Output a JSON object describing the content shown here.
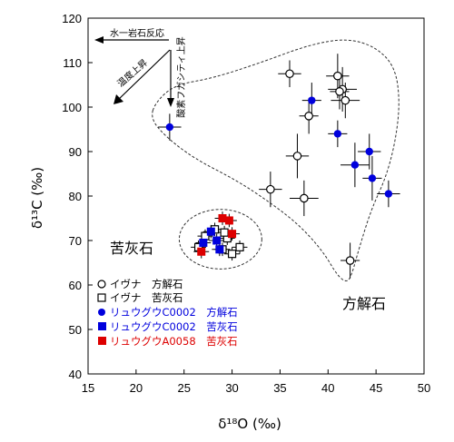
{
  "chart_data": {
    "type": "scatter",
    "xlabel": "δ¹⁸O (‰)",
    "ylabel": "δ¹³C (‰)",
    "xlim": [
      15,
      50
    ],
    "ylim": [
      40,
      120
    ],
    "xticks": [
      "15",
      "20",
      "25",
      "30",
      "35",
      "40",
      "45",
      "50"
    ],
    "yticks": [
      "40",
      "50",
      "60",
      "70",
      "80",
      "90",
      "100",
      "110",
      "120"
    ],
    "grid": false,
    "annotations": {
      "water_rock": "水一岩石反応",
      "temp_rise": "温度上昇",
      "oxygen_fugacity": "酸素フガシティ上昇",
      "dolomite": "苦灰石",
      "calcite": "方解石"
    },
    "legend": [
      {
        "marker": "○",
        "label": "イヴナ　方解石",
        "color": "#000000"
      },
      {
        "marker": "□",
        "label": "イヴナ　苦灰石",
        "color": "#000000"
      },
      {
        "marker": "●",
        "label": "リュウグウC0002　方解石",
        "color": "#0000dd"
      },
      {
        "marker": "■",
        "label": "リュウグウC0002　苦灰石",
        "color": "#0000dd"
      },
      {
        "marker": "■",
        "label": "リュウグウA0058　苦灰石",
        "color": "#dd0000"
      }
    ],
    "series": [
      {
        "name": "イヴナ　方解石",
        "marker": "open-circle",
        "color": "#000000",
        "points": [
          {
            "x": 36.0,
            "y": 107.5,
            "xerr": 1.2,
            "yerr": 3
          },
          {
            "x": 38.0,
            "y": 98.0,
            "xerr": 1.0,
            "yerr": 4
          },
          {
            "x": 41.0,
            "y": 107.0,
            "xerr": 1.2,
            "yerr": 5
          },
          {
            "x": 41.5,
            "y": 104.0,
            "xerr": 1.5,
            "yerr": 5
          },
          {
            "x": 41.8,
            "y": 101.5,
            "xerr": 1.5,
            "yerr": 4
          },
          {
            "x": 41.2,
            "y": 103.5,
            "xerr": 1.0,
            "yerr": 4
          },
          {
            "x": 36.8,
            "y": 89.0,
            "xerr": 1.2,
            "yerr": 5
          },
          {
            "x": 37.5,
            "y": 79.5,
            "xerr": 1.5,
            "yerr": 4
          },
          {
            "x": 34.0,
            "y": 81.5,
            "xerr": 1.2,
            "yerr": 4
          },
          {
            "x": 42.3,
            "y": 65.5,
            "xerr": 1.0,
            "yerr": 4
          }
        ]
      },
      {
        "name": "イヴナ　苦灰石",
        "marker": "open-square",
        "color": "#000000",
        "points": [
          {
            "x": 26.5,
            "y": 68.5,
            "xerr": 0.8,
            "yerr": 1.5
          },
          {
            "x": 27.2,
            "y": 71.0,
            "xerr": 0.8,
            "yerr": 1.5
          },
          {
            "x": 28.2,
            "y": 72.5,
            "xerr": 0.8,
            "yerr": 1.5
          },
          {
            "x": 29.5,
            "y": 70.5,
            "xerr": 0.8,
            "yerr": 1.5
          },
          {
            "x": 29.0,
            "y": 68.0,
            "xerr": 0.8,
            "yerr": 1.5
          },
          {
            "x": 30.0,
            "y": 67.0,
            "xerr": 0.8,
            "yerr": 1.5
          },
          {
            "x": 30.8,
            "y": 68.5,
            "xerr": 0.8,
            "yerr": 1.5
          },
          {
            "x": 29.2,
            "y": 71.8,
            "xerr": 0.8,
            "yerr": 1.5
          }
        ]
      },
      {
        "name": "リュウグウC0002　方解石",
        "marker": "filled-circle",
        "color": "#0000dd",
        "points": [
          {
            "x": 23.5,
            "y": 95.5,
            "xerr": 1.2,
            "yerr": 3
          },
          {
            "x": 38.3,
            "y": 101.5,
            "xerr": 1.0,
            "yerr": 4
          },
          {
            "x": 41.0,
            "y": 94.0,
            "xerr": 1.0,
            "yerr": 3
          },
          {
            "x": 42.8,
            "y": 87.0,
            "xerr": 1.5,
            "yerr": 5
          },
          {
            "x": 44.3,
            "y": 90.0,
            "xerr": 1.2,
            "yerr": 4
          },
          {
            "x": 44.6,
            "y": 84.0,
            "xerr": 1.0,
            "yerr": 5
          },
          {
            "x": 46.3,
            "y": 80.5,
            "xerr": 1.2,
            "yerr": 3
          }
        ]
      },
      {
        "name": "リュウグウC0002　苦灰石",
        "marker": "filled-square",
        "color": "#0000dd",
        "points": [
          {
            "x": 27.0,
            "y": 69.5,
            "xerr": 0.8,
            "yerr": 1.5
          },
          {
            "x": 27.8,
            "y": 72.0,
            "xerr": 0.8,
            "yerr": 1.5
          },
          {
            "x": 28.4,
            "y": 70.0,
            "xerr": 0.8,
            "yerr": 1.5
          },
          {
            "x": 28.7,
            "y": 68.0,
            "xerr": 0.8,
            "yerr": 1.5
          }
        ]
      },
      {
        "name": "リュウグウA0058　苦灰石",
        "marker": "filled-square",
        "color": "#dd0000",
        "points": [
          {
            "x": 26.8,
            "y": 67.5,
            "xerr": 0.8,
            "yerr": 1.5
          },
          {
            "x": 29.0,
            "y": 75.0,
            "xerr": 0.8,
            "yerr": 1.5
          },
          {
            "x": 29.7,
            "y": 74.5,
            "xerr": 0.8,
            "yerr": 1.5
          },
          {
            "x": 30.0,
            "y": 71.5,
            "xerr": 0.8,
            "yerr": 1.5
          }
        ]
      }
    ],
    "envelopes": [
      {
        "name": "dolomite-field",
        "center": [
          28.8,
          70.3
        ],
        "rx": 4.3,
        "ry": 6.7
      },
      {
        "name": "calcite-field",
        "outline": [
          [
            22.0,
            101.0
          ],
          [
            24.0,
            105.0
          ],
          [
            28.0,
            106.5
          ],
          [
            33.0,
            110.0
          ],
          [
            38.0,
            114.0
          ],
          [
            42.0,
            115.5
          ],
          [
            45.0,
            113.5
          ],
          [
            47.0,
            109.0
          ],
          [
            47.5,
            101.0
          ],
          [
            47.0,
            92.0
          ],
          [
            46.0,
            84.0
          ],
          [
            44.5,
            77.0
          ],
          [
            43.2,
            68.0
          ],
          [
            42.5,
            62.5
          ],
          [
            42.0,
            60.5
          ],
          [
            41.0,
            62.0
          ],
          [
            39.5,
            67.5
          ],
          [
            37.0,
            73.5
          ],
          [
            34.0,
            78.5
          ],
          [
            30.5,
            83.5
          ],
          [
            26.0,
            88.5
          ],
          [
            23.0,
            93.5
          ],
          [
            21.5,
            97.5
          ]
        ]
      }
    ]
  }
}
